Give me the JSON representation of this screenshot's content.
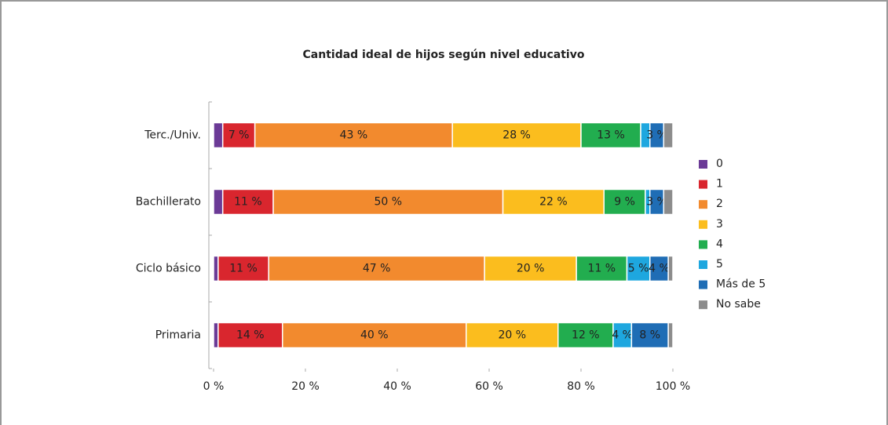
{
  "chart_data": {
    "type": "stacked_bar_horizontal",
    "title": "Cantidad ideal de hijos según nivel educativo",
    "categories": [
      "Terc./Univ.",
      "Bachillerato",
      "Ciclo básico",
      "Primaria"
    ],
    "series": [
      {
        "name": "0",
        "color": "#6b3a96",
        "values": [
          2,
          2,
          1,
          1
        ],
        "value_labels": [
          null,
          null,
          null,
          null
        ]
      },
      {
        "name": "1",
        "color": "#d9262e",
        "values": [
          7,
          11,
          11,
          14
        ],
        "value_labels": [
          "7 %",
          "11 %",
          "11 %",
          "14 %"
        ]
      },
      {
        "name": "2",
        "color": "#f28a2e",
        "values": [
          43,
          50,
          47,
          40
        ],
        "value_labels": [
          "43 %",
          "50 %",
          "47 %",
          "40 %"
        ]
      },
      {
        "name": "3",
        "color": "#fbbd1e",
        "values": [
          28,
          22,
          20,
          20
        ],
        "value_labels": [
          "28 %",
          "22 %",
          "20 %",
          "20 %"
        ]
      },
      {
        "name": "4",
        "color": "#22ad4f",
        "values": [
          13,
          9,
          11,
          12
        ],
        "value_labels": [
          "13 %",
          "9 %",
          "11 %",
          "12 %"
        ]
      },
      {
        "name": "5",
        "color": "#1ea7df",
        "values": [
          2,
          1,
          5,
          4
        ],
        "value_labels": [
          null,
          null,
          "5 %",
          "4 %"
        ]
      },
      {
        "name": "Más de 5",
        "color": "#1f6db5",
        "values": [
          3,
          3,
          4,
          8
        ],
        "value_labels": [
          "3 %",
          "3 %",
          "4 %",
          "8 %"
        ]
      },
      {
        "name": "No sabe",
        "color": "#8c8c8c",
        "values": [
          2,
          2,
          1,
          1
        ],
        "value_labels": [
          null,
          null,
          null,
          null
        ]
      }
    ],
    "xlim": [
      0,
      100
    ],
    "xticks": [
      {
        "value": 0,
        "label": "0 %"
      },
      {
        "value": 20,
        "label": "20 %"
      },
      {
        "value": 40,
        "label": "40 %"
      },
      {
        "value": 60,
        "label": "60 %"
      },
      {
        "value": 80,
        "label": "80 %"
      },
      {
        "value": 100,
        "label": "100 %"
      }
    ],
    "legend": "right"
  }
}
